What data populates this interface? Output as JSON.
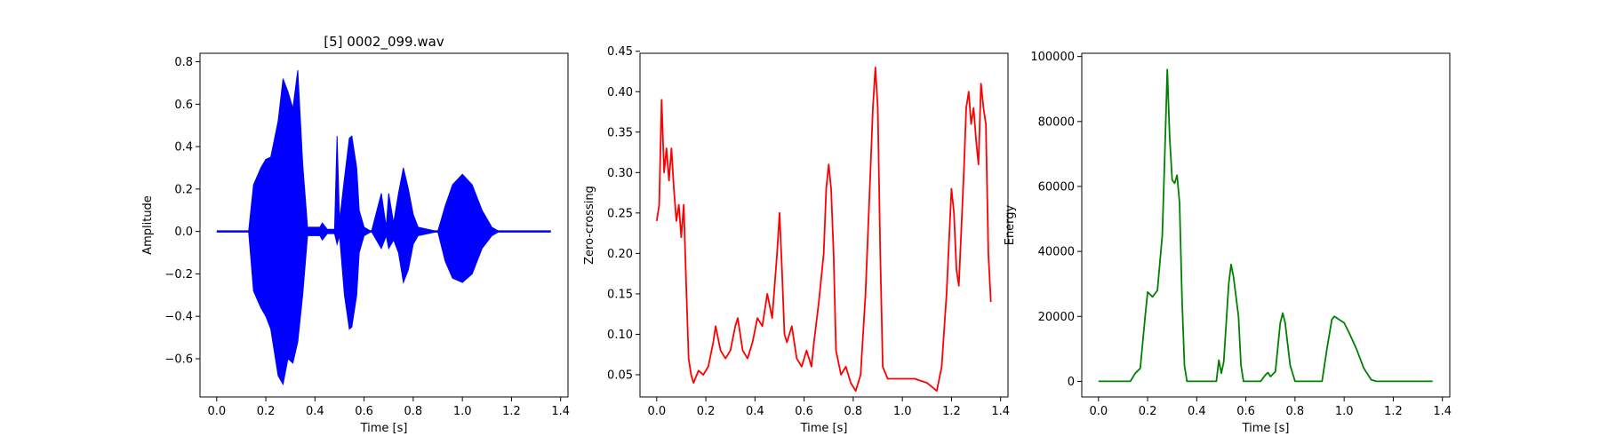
{
  "chart_data": [
    {
      "type": "line",
      "title": "[5] 0002_099.wav",
      "xlabel": "Time [s]",
      "ylabel": "Amplitude",
      "color": "#0000ff",
      "xlim": [
        -0.068,
        1.43
      ],
      "ylim": [
        -0.78,
        0.84
      ],
      "xticks": [
        0.0,
        0.2,
        0.4,
        0.6,
        0.8,
        1.0,
        1.2,
        1.4
      ],
      "xtick_labels": [
        "0.0",
        "0.2",
        "0.4",
        "0.6",
        "0.8",
        "1.0",
        "1.2",
        "1.4"
      ],
      "yticks": [
        -0.6,
        -0.4,
        -0.2,
        0.0,
        0.2,
        0.4,
        0.6,
        0.8
      ],
      "ytick_labels": [
        "−0.6",
        "−0.4",
        "−0.2",
        "0.0",
        "0.2",
        "0.4",
        "0.6",
        "0.8"
      ],
      "envelope_upper": [
        [
          0.0,
          0.0
        ],
        [
          0.13,
          0.0
        ],
        [
          0.15,
          0.22
        ],
        [
          0.18,
          0.3
        ],
        [
          0.2,
          0.34
        ],
        [
          0.22,
          0.35
        ],
        [
          0.25,
          0.52
        ],
        [
          0.27,
          0.72
        ],
        [
          0.29,
          0.66
        ],
        [
          0.31,
          0.58
        ],
        [
          0.33,
          0.76
        ],
        [
          0.35,
          0.32
        ],
        [
          0.37,
          0.02
        ],
        [
          0.42,
          0.02
        ],
        [
          0.43,
          0.04
        ],
        [
          0.45,
          0.01
        ],
        [
          0.48,
          0.01
        ],
        [
          0.49,
          0.45
        ],
        [
          0.5,
          0.05
        ],
        [
          0.52,
          0.25
        ],
        [
          0.54,
          0.44
        ],
        [
          0.55,
          0.45
        ],
        [
          0.57,
          0.3
        ],
        [
          0.58,
          0.1
        ],
        [
          0.6,
          0.02
        ],
        [
          0.63,
          0.0
        ],
        [
          0.67,
          0.18
        ],
        [
          0.69,
          0.02
        ],
        [
          0.7,
          0.18
        ],
        [
          0.72,
          0.04
        ],
        [
          0.74,
          0.18
        ],
        [
          0.76,
          0.3
        ],
        [
          0.78,
          0.2
        ],
        [
          0.8,
          0.08
        ],
        [
          0.82,
          0.02
        ],
        [
          0.9,
          0.0
        ],
        [
          0.93,
          0.12
        ],
        [
          0.96,
          0.22
        ],
        [
          1.0,
          0.27
        ],
        [
          1.04,
          0.22
        ],
        [
          1.08,
          0.1
        ],
        [
          1.12,
          0.02
        ],
        [
          1.15,
          0.0
        ],
        [
          1.36,
          0.0
        ]
      ],
      "envelope_lower": [
        [
          0.0,
          0.0
        ],
        [
          0.13,
          0.0
        ],
        [
          0.15,
          -0.28
        ],
        [
          0.18,
          -0.36
        ],
        [
          0.2,
          -0.4
        ],
        [
          0.22,
          -0.46
        ],
        [
          0.25,
          -0.68
        ],
        [
          0.27,
          -0.72
        ],
        [
          0.29,
          -0.6
        ],
        [
          0.31,
          -0.62
        ],
        [
          0.33,
          -0.52
        ],
        [
          0.35,
          -0.3
        ],
        [
          0.37,
          -0.02
        ],
        [
          0.42,
          -0.02
        ],
        [
          0.43,
          -0.04
        ],
        [
          0.45,
          -0.01
        ],
        [
          0.48,
          -0.01
        ],
        [
          0.49,
          -0.06
        ],
        [
          0.5,
          -0.02
        ],
        [
          0.52,
          -0.3
        ],
        [
          0.54,
          -0.46
        ],
        [
          0.55,
          -0.45
        ],
        [
          0.57,
          -0.3
        ],
        [
          0.58,
          -0.1
        ],
        [
          0.6,
          -0.02
        ],
        [
          0.63,
          0.0
        ],
        [
          0.67,
          -0.08
        ],
        [
          0.69,
          -0.02
        ],
        [
          0.7,
          -0.08
        ],
        [
          0.72,
          -0.04
        ],
        [
          0.74,
          -0.1
        ],
        [
          0.76,
          -0.24
        ],
        [
          0.78,
          -0.18
        ],
        [
          0.8,
          -0.06
        ],
        [
          0.82,
          -0.02
        ],
        [
          0.9,
          0.0
        ],
        [
          0.93,
          -0.14
        ],
        [
          0.96,
          -0.22
        ],
        [
          1.0,
          -0.24
        ],
        [
          1.04,
          -0.2
        ],
        [
          1.08,
          -0.08
        ],
        [
          1.12,
          -0.02
        ],
        [
          1.15,
          0.0
        ],
        [
          1.36,
          0.0
        ]
      ]
    },
    {
      "type": "line",
      "title": "",
      "xlabel": "Time [s]",
      "ylabel": "Zero-crossing",
      "color": "#ff0000",
      "xlim": [
        -0.068,
        1.43
      ],
      "ylim": [
        0.0225,
        0.4475
      ],
      "xticks": [
        0.0,
        0.2,
        0.4,
        0.6,
        0.8,
        1.0,
        1.2,
        1.4
      ],
      "xtick_labels": [
        "0.0",
        "0.2",
        "0.4",
        "0.6",
        "0.8",
        "1.0",
        "1.2",
        "1.4"
      ],
      "yticks": [
        0.05,
        0.1,
        0.15,
        0.2,
        0.25,
        0.3,
        0.35,
        0.4,
        0.45
      ],
      "ytick_labels": [
        "0.05",
        "0.10",
        "0.15",
        "0.20",
        "0.25",
        "0.30",
        "0.35",
        "0.40",
        "0.45"
      ],
      "points": [
        [
          0.0,
          0.24
        ],
        [
          0.01,
          0.26
        ],
        [
          0.02,
          0.39
        ],
        [
          0.03,
          0.3
        ],
        [
          0.04,
          0.33
        ],
        [
          0.05,
          0.29
        ],
        [
          0.06,
          0.33
        ],
        [
          0.07,
          0.28
        ],
        [
          0.08,
          0.24
        ],
        [
          0.09,
          0.26
        ],
        [
          0.1,
          0.22
        ],
        [
          0.11,
          0.26
        ],
        [
          0.12,
          0.16
        ],
        [
          0.13,
          0.07
        ],
        [
          0.14,
          0.05
        ],
        [
          0.15,
          0.04
        ],
        [
          0.17,
          0.055
        ],
        [
          0.19,
          0.05
        ],
        [
          0.21,
          0.06
        ],
        [
          0.23,
          0.09
        ],
        [
          0.24,
          0.11
        ],
        [
          0.26,
          0.08
        ],
        [
          0.28,
          0.07
        ],
        [
          0.3,
          0.08
        ],
        [
          0.32,
          0.11
        ],
        [
          0.33,
          0.12
        ],
        [
          0.35,
          0.08
        ],
        [
          0.37,
          0.07
        ],
        [
          0.39,
          0.09
        ],
        [
          0.41,
          0.12
        ],
        [
          0.43,
          0.11
        ],
        [
          0.45,
          0.15
        ],
        [
          0.47,
          0.12
        ],
        [
          0.49,
          0.2
        ],
        [
          0.5,
          0.25
        ],
        [
          0.51,
          0.18
        ],
        [
          0.52,
          0.1
        ],
        [
          0.53,
          0.09
        ],
        [
          0.55,
          0.11
        ],
        [
          0.57,
          0.07
        ],
        [
          0.59,
          0.06
        ],
        [
          0.61,
          0.08
        ],
        [
          0.63,
          0.06
        ],
        [
          0.64,
          0.09
        ],
        [
          0.66,
          0.14
        ],
        [
          0.68,
          0.2
        ],
        [
          0.69,
          0.28
        ],
        [
          0.7,
          0.31
        ],
        [
          0.71,
          0.28
        ],
        [
          0.72,
          0.2
        ],
        [
          0.73,
          0.08
        ],
        [
          0.75,
          0.05
        ],
        [
          0.77,
          0.06
        ],
        [
          0.79,
          0.04
        ],
        [
          0.81,
          0.03
        ],
        [
          0.83,
          0.05
        ],
        [
          0.85,
          0.15
        ],
        [
          0.87,
          0.3
        ],
        [
          0.88,
          0.38
        ],
        [
          0.89,
          0.43
        ],
        [
          0.9,
          0.38
        ],
        [
          0.91,
          0.2
        ],
        [
          0.92,
          0.06
        ],
        [
          0.94,
          0.045
        ],
        [
          1.0,
          0.045
        ],
        [
          1.05,
          0.045
        ],
        [
          1.1,
          0.04
        ],
        [
          1.14,
          0.03
        ],
        [
          1.16,
          0.06
        ],
        [
          1.18,
          0.15
        ],
        [
          1.2,
          0.28
        ],
        [
          1.21,
          0.25
        ],
        [
          1.22,
          0.18
        ],
        [
          1.23,
          0.16
        ],
        [
          1.25,
          0.3
        ],
        [
          1.26,
          0.38
        ],
        [
          1.27,
          0.4
        ],
        [
          1.28,
          0.36
        ],
        [
          1.29,
          0.38
        ],
        [
          1.3,
          0.34
        ],
        [
          1.31,
          0.31
        ],
        [
          1.32,
          0.41
        ],
        [
          1.33,
          0.38
        ],
        [
          1.34,
          0.36
        ],
        [
          1.35,
          0.2
        ],
        [
          1.36,
          0.14
        ]
      ]
    },
    {
      "type": "line",
      "title": "",
      "xlabel": "Time [s]",
      "ylabel": "Energy",
      "color": "#008000",
      "xlim": [
        -0.068,
        1.43
      ],
      "ylim": [
        -4800,
        101000
      ],
      "xticks": [
        0.0,
        0.2,
        0.4,
        0.6,
        0.8,
        1.0,
        1.2,
        1.4
      ],
      "xtick_labels": [
        "0.0",
        "0.2",
        "0.4",
        "0.6",
        "0.8",
        "1.0",
        "1.2",
        "1.4"
      ],
      "yticks": [
        0,
        20000,
        40000,
        60000,
        80000,
        100000
      ],
      "ytick_labels": [
        "0",
        "20000",
        "40000",
        "60000",
        "80000",
        "100000"
      ],
      "points": [
        [
          0.0,
          0
        ],
        [
          0.13,
          0
        ],
        [
          0.15,
          2500
        ],
        [
          0.17,
          4000
        ],
        [
          0.19,
          20000
        ],
        [
          0.2,
          27500
        ],
        [
          0.22,
          26000
        ],
        [
          0.24,
          28000
        ],
        [
          0.26,
          45000
        ],
        [
          0.27,
          70000
        ],
        [
          0.28,
          96000
        ],
        [
          0.29,
          75000
        ],
        [
          0.3,
          62000
        ],
        [
          0.31,
          61000
        ],
        [
          0.32,
          63500
        ],
        [
          0.33,
          55000
        ],
        [
          0.34,
          25000
        ],
        [
          0.35,
          5000
        ],
        [
          0.36,
          0
        ],
        [
          0.48,
          0
        ],
        [
          0.49,
          6500
        ],
        [
          0.5,
          2500
        ],
        [
          0.51,
          6000
        ],
        [
          0.53,
          30000
        ],
        [
          0.54,
          36000
        ],
        [
          0.55,
          32000
        ],
        [
          0.57,
          20000
        ],
        [
          0.58,
          5000
        ],
        [
          0.59,
          0
        ],
        [
          0.66,
          0
        ],
        [
          0.68,
          2000
        ],
        [
          0.69,
          2700
        ],
        [
          0.7,
          1500
        ],
        [
          0.72,
          3000
        ],
        [
          0.74,
          18000
        ],
        [
          0.75,
          21000
        ],
        [
          0.76,
          18000
        ],
        [
          0.78,
          5000
        ],
        [
          0.8,
          0
        ],
        [
          0.91,
          0
        ],
        [
          0.93,
          10000
        ],
        [
          0.95,
          19000
        ],
        [
          0.96,
          20000
        ],
        [
          1.0,
          18000
        ],
        [
          1.02,
          15000
        ],
        [
          1.05,
          10000
        ],
        [
          1.08,
          4000
        ],
        [
          1.11,
          500
        ],
        [
          1.13,
          0
        ],
        [
          1.36,
          0
        ]
      ]
    }
  ]
}
